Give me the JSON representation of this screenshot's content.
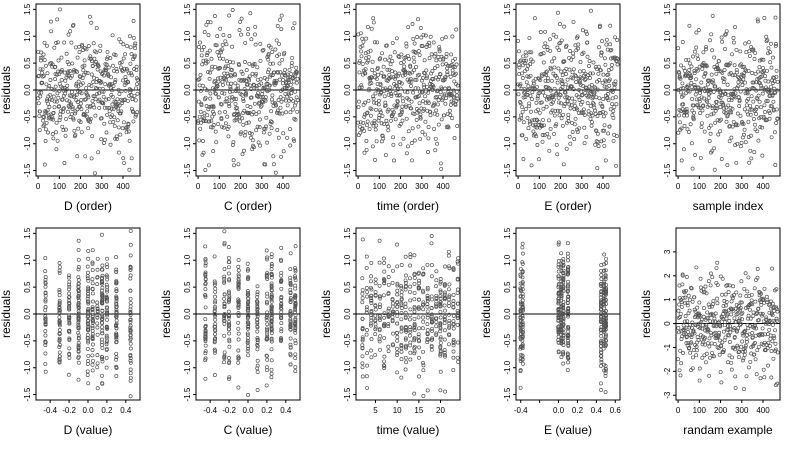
{
  "colors": {
    "points": "#555555",
    "axis": "#000000"
  },
  "chart_data": [
    {
      "type": "scatter",
      "xlabel": "D (order)",
      "ylabel": "residuals",
      "xlim": [
        -10,
        480
      ],
      "ylim": [
        -1.6,
        1.6
      ],
      "xticks": [
        0,
        100,
        200,
        300,
        400
      ],
      "xtick_labels": [
        "0",
        "100",
        "200",
        "300",
        "400"
      ],
      "yticks": [
        -1.5,
        -1.0,
        -0.5,
        0.0,
        0.5,
        1.0,
        1.5
      ],
      "ytick_labels": [
        "-1.5",
        "-1.0",
        "-0.5",
        "0.0",
        "0.5",
        "1.0",
        "1.5"
      ],
      "hline": 0,
      "x_kind": "order",
      "n": 470,
      "seed": 11
    },
    {
      "type": "scatter",
      "xlabel": "C (order)",
      "ylabel": "residuals",
      "xlim": [
        -10,
        480
      ],
      "ylim": [
        -1.6,
        1.6
      ],
      "xticks": [
        0,
        100,
        200,
        300,
        400
      ],
      "xtick_labels": [
        "0",
        "100",
        "200",
        "300",
        "400"
      ],
      "yticks": [
        -1.5,
        -1.0,
        -0.5,
        0.0,
        0.5,
        1.0,
        1.5
      ],
      "ytick_labels": [
        "-1.5",
        "-1.0",
        "-0.5",
        "0.0",
        "0.5",
        "1.0",
        "1.5"
      ],
      "hline": 0,
      "x_kind": "order",
      "n": 470,
      "seed": 23
    },
    {
      "type": "scatter",
      "xlabel": "time (order)",
      "ylabel": "residuals",
      "xlim": [
        -10,
        480
      ],
      "ylim": [
        -1.6,
        1.6
      ],
      "xticks": [
        0,
        100,
        200,
        300,
        400
      ],
      "xtick_labels": [
        "0",
        "100",
        "200",
        "300",
        "400"
      ],
      "yticks": [
        -1.5,
        -1.0,
        -0.5,
        0.0,
        0.5,
        1.0,
        1.5
      ],
      "ytick_labels": [
        "-1.5",
        "-1.0",
        "-0.5",
        "0.0",
        "0.5",
        "1.0",
        "1.5"
      ],
      "hline": 0,
      "x_kind": "order",
      "n": 470,
      "seed": 37
    },
    {
      "type": "scatter",
      "xlabel": "E (order)",
      "ylabel": "residuals",
      "xlim": [
        -10,
        480
      ],
      "ylim": [
        -1.6,
        1.6
      ],
      "xticks": [
        0,
        100,
        200,
        300,
        400
      ],
      "xtick_labels": [
        "0",
        "100",
        "200",
        "300",
        "400"
      ],
      "yticks": [
        -1.5,
        -1.0,
        -0.5,
        0.0,
        0.5,
        1.0,
        1.5
      ],
      "ytick_labels": [
        "-1.5",
        "-1.0",
        "-0.5",
        "0.0",
        "0.5",
        "1.0",
        "1.5"
      ],
      "hline": 0,
      "x_kind": "order",
      "n": 470,
      "seed": 41
    },
    {
      "type": "scatter",
      "xlabel": "sample index",
      "ylabel": "residuals",
      "xlim": [
        -10,
        480
      ],
      "ylim": [
        -1.6,
        1.6
      ],
      "xticks": [
        0,
        100,
        200,
        300,
        400
      ],
      "xtick_labels": [
        "0",
        "100",
        "200",
        "300",
        "400"
      ],
      "yticks": [
        -1.5,
        -1.0,
        -0.5,
        0.0,
        0.5,
        1.0,
        1.5
      ],
      "ytick_labels": [
        "-1.5",
        "-1.0",
        "-0.5",
        "0.0",
        "0.5",
        "1.0",
        "1.5"
      ],
      "hline": 0,
      "x_kind": "order",
      "n": 470,
      "seed": 53
    },
    {
      "type": "scatter",
      "xlabel": "D (value)",
      "ylabel": "residuals",
      "xlim": [
        -0.55,
        0.55
      ],
      "ylim": [
        -1.6,
        1.6
      ],
      "xticks": [
        -0.4,
        -0.2,
        0.0,
        0.2,
        0.4
      ],
      "xtick_labels": [
        "-0.4",
        "-0.2",
        "0.0",
        "0.2",
        "0.4"
      ],
      "yticks": [
        -1.5,
        -1.0,
        -0.5,
        0.0,
        0.5,
        1.0,
        1.5
      ],
      "ytick_labels": [
        "-1.5",
        "-1.0",
        "-0.5",
        "0.0",
        "0.5",
        "1.0",
        "1.5"
      ],
      "hline": 0,
      "x_kind": "discrete",
      "levels": [
        -0.45,
        -0.3,
        -0.2,
        -0.1,
        0.0,
        0.05,
        0.1,
        0.15,
        0.2,
        0.3,
        0.45
      ],
      "n": 470,
      "seed": 61
    },
    {
      "type": "scatter",
      "xlabel": "C (value)",
      "ylabel": "residuals",
      "xlim": [
        -0.55,
        0.55
      ],
      "ylim": [
        -1.6,
        1.6
      ],
      "xticks": [
        -0.4,
        -0.2,
        0.0,
        0.2,
        0.4
      ],
      "xtick_labels": [
        "-0.4",
        "-0.2",
        "0.0",
        "0.2",
        "0.4"
      ],
      "yticks": [
        -1.5,
        -1.0,
        -0.5,
        0.0,
        0.5,
        1.0,
        1.5
      ],
      "ytick_labels": [
        "-1.5",
        "-1.0",
        "-0.5",
        "0.0",
        "0.5",
        "1.0",
        "1.5"
      ],
      "hline": 0,
      "x_kind": "discrete",
      "levels": [
        -0.45,
        -0.35,
        -0.25,
        -0.2,
        -0.1,
        0.0,
        0.1,
        0.2,
        0.25,
        0.35,
        0.45,
        0.5
      ],
      "n": 470,
      "seed": 71
    },
    {
      "type": "scatter",
      "xlabel": "time (value)",
      "ylabel": "residuals",
      "xlim": [
        0.5,
        24.5
      ],
      "ylim": [
        -1.6,
        1.6
      ],
      "xticks": [
        5,
        10,
        15,
        20
      ],
      "xtick_labels": [
        "5",
        "10",
        "15",
        "20"
      ],
      "yticks": [
        -1.5,
        -1.0,
        -0.5,
        0.0,
        0.5,
        1.0,
        1.5
      ],
      "ytick_labels": [
        "-1.5",
        "-1.0",
        "-0.5",
        "0.0",
        "0.5",
        "1.0",
        "1.5"
      ],
      "hline": 0,
      "x_kind": "discrete",
      "levels": [
        2,
        3,
        4,
        5,
        6,
        7,
        8,
        9,
        10,
        11,
        12,
        13,
        14,
        15,
        16,
        17,
        18,
        19,
        20,
        21,
        22,
        23,
        24
      ],
      "n": 470,
      "seed": 83
    },
    {
      "type": "scatter",
      "xlabel": "E (value)",
      "ylabel": "residuals",
      "xlim": [
        -0.45,
        0.65
      ],
      "ylim": [
        -1.6,
        1.6
      ],
      "xticks": [
        -0.4,
        -0.2,
        0.0,
        0.2,
        0.4,
        0.6
      ],
      "xtick_labels": [
        "-0.4",
        "",
        "0.0",
        "0.2",
        "0.4",
        "0.6"
      ],
      "yticks": [
        -1.5,
        -1.0,
        -0.5,
        0.0,
        0.5,
        1.0,
        1.5
      ],
      "ytick_labels": [
        "-1.5",
        "-1.0",
        "-0.5",
        "0.0",
        "0.5",
        "1.0",
        "1.5"
      ],
      "hline": 0,
      "x_kind": "discrete",
      "levels": [
        -0.4,
        -0.38,
        0.0,
        0.03,
        0.05,
        0.1,
        0.45,
        0.48,
        0.5
      ],
      "n": 470,
      "seed": 97
    },
    {
      "type": "scatter",
      "xlabel": "randam example",
      "ylabel": "residuals",
      "xlim": [
        -10,
        480
      ],
      "ylim": [
        -3.2,
        4.0
      ],
      "xticks": [
        0,
        100,
        200,
        300,
        400
      ],
      "xtick_labels": [
        "0",
        "100",
        "200",
        "300",
        "400"
      ],
      "yticks": [
        -3,
        -2,
        -1,
        0,
        1,
        2,
        3
      ],
      "ytick_labels": [
        "-3",
        "-2",
        "-1",
        "0",
        "1",
        "2",
        "3"
      ],
      "hline": 0,
      "x_kind": "order",
      "n": 470,
      "seed": 101,
      "sd": 1.0
    }
  ]
}
